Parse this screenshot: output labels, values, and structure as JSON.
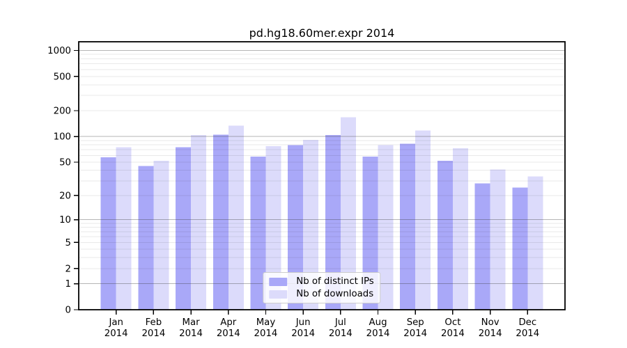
{
  "chart_data": {
    "type": "bar",
    "title": "pd.hg18.60mer.expr 2014",
    "categories": [
      "Jan",
      "Feb",
      "Mar",
      "Apr",
      "May",
      "Jun",
      "Jul",
      "Aug",
      "Sep",
      "Oct",
      "Nov",
      "Dec"
    ],
    "category_year": "2014",
    "series": [
      {
        "name": "Nb of distinct IPs",
        "color": "#a9a8f8",
        "values": [
          57,
          45,
          75,
          105,
          58,
          79,
          104,
          58,
          82,
          52,
          28,
          25
        ]
      },
      {
        "name": "Nb of downloads",
        "color": "#dcdbfb",
        "values": [
          75,
          52,
          104,
          134,
          77,
          91,
          168,
          79,
          118,
          73,
          41,
          34
        ]
      }
    ],
    "xlabel": "",
    "ylabel": "",
    "yscale": "log1p",
    "ylim": [
      0,
      1260
    ],
    "yticks": [
      0,
      1,
      2,
      5,
      10,
      20,
      50,
      100,
      200,
      500,
      1000
    ],
    "minor_gridlines": [
      2,
      3,
      4,
      5,
      6,
      7,
      8,
      9,
      20,
      30,
      40,
      50,
      60,
      70,
      80,
      90,
      200,
      300,
      400,
      500,
      600,
      700,
      800,
      900
    ],
    "major_gridlines": [
      1,
      10,
      100,
      1000
    ],
    "grid": true,
    "legend_position": "lower center",
    "colors": {
      "spine": "#000000",
      "major_grid": "#b0b0b0",
      "minor_grid": "#e9e9e9",
      "text": "#000000",
      "legend_border": "#cccccc"
    }
  }
}
